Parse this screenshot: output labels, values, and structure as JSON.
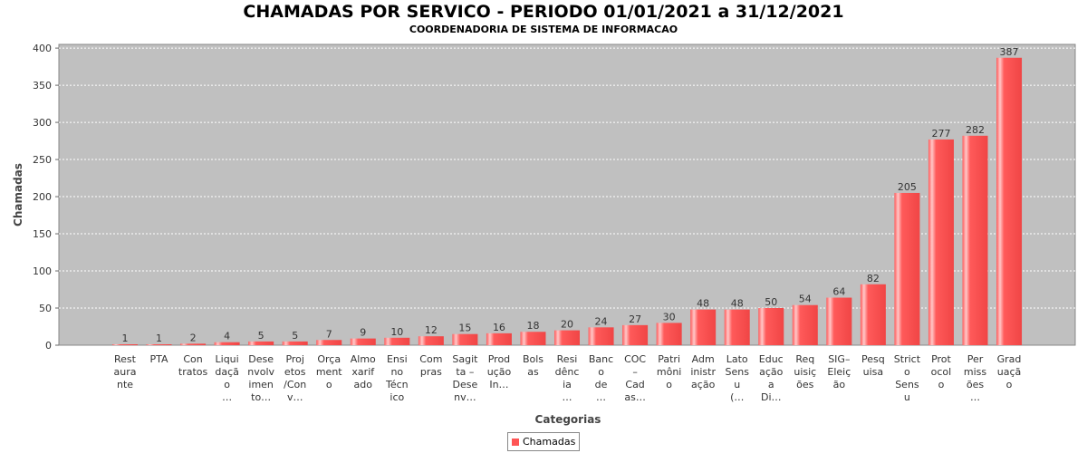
{
  "chart_data": {
    "type": "bar",
    "title": "CHAMADAS POR SERVICO - PERIODO 01/01/2021 a 31/12/2021",
    "subtitle": "COORDENADORIA DE SISTEMA DE INFORMACAO",
    "xlabel": "Categorias",
    "ylabel": "Chamadas",
    "ylim": [
      0,
      405
    ],
    "yticks": [
      0,
      50,
      100,
      150,
      200,
      250,
      300,
      350,
      400
    ],
    "grid": true,
    "legend_placement": "bottom-center",
    "bar_color": "#ff5555",
    "categories": [
      "Rest aura nte",
      "PTA",
      "Con tratos",
      "Liqui daçã o …",
      "Dese nvolv imen to…",
      "Proj etos /Con v…",
      "Orça ment o",
      "Almo xarif ado",
      "Ensi no Técn ico",
      "Com pras",
      "Sagit ta – Dese nv…",
      "Prod ução In…",
      "Bols as",
      "Resi dênc ia …",
      "Banc o de …",
      "COC – Cad as…",
      "Patri môni o",
      "Adm inistr ação",
      "Lato Sens u (…",
      "Educ ação a Di…",
      "Req uisiç ões",
      "SIG– Eleiç ão",
      "Pesq uisa",
      "Strict o Sens u",
      "Prot ocol o",
      "Per miss ões …",
      "Grad uaçã o"
    ],
    "category_lines": [
      [
        "Rest",
        "aura",
        "nte"
      ],
      [
        "PTA"
      ],
      [
        "Con",
        "tratos"
      ],
      [
        "Liqui",
        "daçã",
        "o",
        "…"
      ],
      [
        "Dese",
        "nvolv",
        "imen",
        "to…"
      ],
      [
        "Proj",
        "etos",
        "/Con",
        "v…"
      ],
      [
        "Orça",
        "ment",
        "o"
      ],
      [
        "Almo",
        "xarif",
        "ado"
      ],
      [
        "Ensi",
        "no",
        "Técn",
        "ico"
      ],
      [
        "Com",
        "pras"
      ],
      [
        "Sagit",
        "ta –",
        "Dese",
        "nv…"
      ],
      [
        "Prod",
        "ução",
        "In…"
      ],
      [
        "Bols",
        "as"
      ],
      [
        "Resi",
        "dênc",
        "ia",
        "…"
      ],
      [
        "Banc",
        "o",
        "de",
        "…"
      ],
      [
        "COC",
        "–",
        "Cad",
        "as…"
      ],
      [
        "Patri",
        "môni",
        "o"
      ],
      [
        "Adm",
        "inistr",
        "ação"
      ],
      [
        "Lato",
        "Sens",
        "u",
        "(…"
      ],
      [
        "Educ",
        "ação",
        "a",
        "Di…"
      ],
      [
        "Req",
        "uisiç",
        "ões"
      ],
      [
        "SIG–",
        "Eleiç",
        "ão"
      ],
      [
        "Pesq",
        "uisa"
      ],
      [
        "Strict",
        "o",
        "Sens",
        "u"
      ],
      [
        "Prot",
        "ocol",
        "o"
      ],
      [
        "Per",
        "miss",
        "ões",
        "…"
      ],
      [
        "Grad",
        "uaçã",
        "o"
      ]
    ],
    "series": [
      {
        "name": "Chamadas",
        "values": [
          1,
          1,
          2,
          4,
          5,
          5,
          7,
          9,
          10,
          12,
          15,
          16,
          18,
          20,
          24,
          27,
          30,
          48,
          48,
          50,
          54,
          64,
          82,
          205,
          277,
          282,
          387
        ]
      }
    ]
  }
}
